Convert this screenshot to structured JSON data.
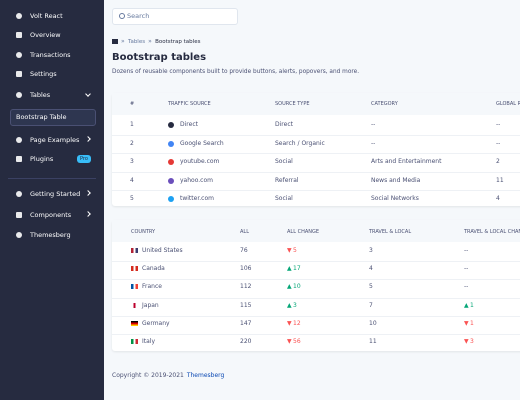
{
  "sidebar": {
    "items": [
      {
        "label": "Volt React"
      },
      {
        "label": "Overview"
      },
      {
        "label": "Transactions"
      },
      {
        "label": "Settings"
      },
      {
        "label": "Tables",
        "chevron": "down"
      },
      {
        "label": "Bootstrap Table",
        "active": true
      },
      {
        "label": "Page Examples",
        "chevron": "right"
      },
      {
        "label": "Plugins",
        "badge": "Pro"
      },
      {
        "label": "Getting Started",
        "chevron": "right"
      },
      {
        "label": "Components",
        "chevron": "right"
      },
      {
        "label": "Themesberg"
      }
    ]
  },
  "search": {
    "placeholder": "Search"
  },
  "breadcrumb": [
    "Tables",
    "Bootstrap tables"
  ],
  "header": {
    "title": "Bootstrap tables",
    "subtitle": "Dozens of reusable components built to provide buttons, alerts, popovers, and more."
  },
  "table1": {
    "columns": [
      "#",
      "TRAFFIC SOURCE",
      "SOURCE TYPE",
      "CATEGORY",
      "GLOBAL RANK"
    ],
    "rows": [
      [
        "1",
        "Direct",
        "Direct",
        "--",
        "--"
      ],
      [
        "2",
        "Google Search",
        "Search / Organic",
        "--",
        "--"
      ],
      [
        "3",
        "youtube.com",
        "Social",
        "Arts and Entertainment",
        "2"
      ],
      [
        "4",
        "yahoo.com",
        "Referral",
        "News and Media",
        "11"
      ],
      [
        "5",
        "twitter.com",
        "Social",
        "Social Networks",
        "4"
      ]
    ]
  },
  "table2": {
    "columns": [
      "COUNTRY",
      "ALL",
      "ALL CHANGE",
      "TRAVEL & LOCAL",
      "TRAVEL & LOCAL CHANGE"
    ],
    "rows": [
      [
        "United States",
        "76",
        {
          "value": "5",
          "trend": "down"
        },
        "3",
        "--"
      ],
      [
        "Canada",
        "106",
        {
          "value": "17",
          "trend": "up"
        },
        "4",
        "--"
      ],
      [
        "France",
        "112",
        {
          "value": "10",
          "trend": "up"
        },
        "5",
        "--"
      ],
      [
        "Japan",
        "115",
        {
          "value": "3",
          "trend": "up"
        },
        "7",
        {
          "value": "1",
          "trend": "up"
        }
      ],
      [
        "Germany",
        "147",
        {
          "value": "12",
          "trend": "down"
        },
        "10",
        {
          "value": "1",
          "trend": "down"
        }
      ],
      [
        "Italy",
        "220",
        {
          "value": "56",
          "trend": "down"
        },
        "11",
        {
          "value": "3",
          "trend": "down"
        }
      ]
    ]
  },
  "footer": {
    "copyright": "Copyright © 2019-2021",
    "link": "Themesberg"
  }
}
